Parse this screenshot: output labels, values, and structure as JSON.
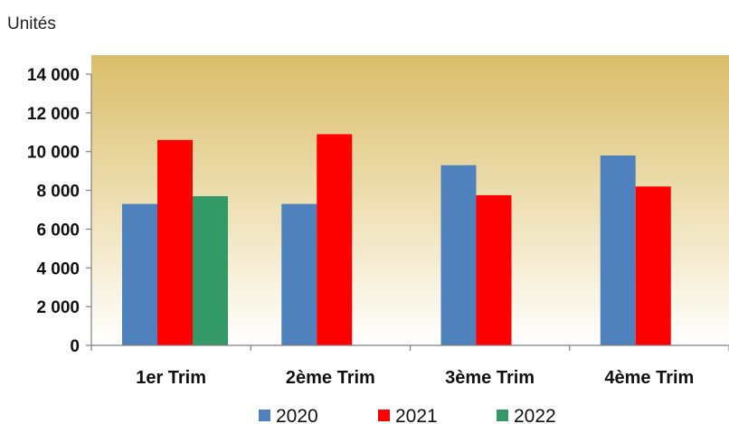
{
  "chart_data": {
    "type": "bar",
    "unit_label": "Unités",
    "categories": [
      "1er Trim",
      "2ème Trim",
      "3ème Trim",
      "4ème Trim"
    ],
    "series": [
      {
        "name": "2020",
        "color": "#4f81bd",
        "values": [
          7300,
          7300,
          9300,
          9800
        ]
      },
      {
        "name": "2021",
        "color": "#ff0000",
        "values": [
          10600,
          10900,
          7750,
          8200
        ]
      },
      {
        "name": "2022",
        "color": "#339966",
        "values": [
          7700,
          null,
          null,
          null
        ]
      }
    ],
    "ylim": [
      0,
      14000
    ],
    "yticks": [
      0,
      2000,
      4000,
      6000,
      8000,
      10000,
      12000,
      14000
    ],
    "ytick_labels": [
      "0",
      "2 000",
      "4 000",
      "6 000",
      "8 000",
      "10 000",
      "12 000",
      "14 000"
    ],
    "legend_position": "bottom",
    "plot_background": "gradient gold to white"
  }
}
